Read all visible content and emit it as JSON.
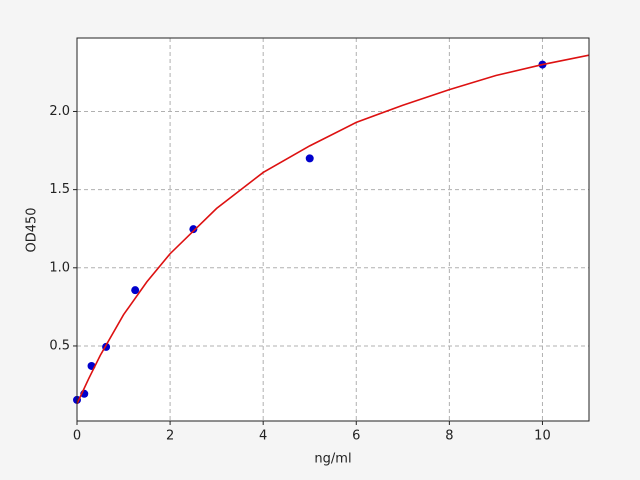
{
  "chart_data": {
    "type": "scatter",
    "xlabel": "ng/ml",
    "ylabel": "OD450",
    "series": [
      {
        "type": "scatter",
        "color": "#0000cc",
        "x": [
          0,
          0.156,
          0.312,
          0.625,
          1.25,
          2.5,
          5,
          10
        ],
        "values": [
          0.155,
          0.194,
          0.372,
          0.494,
          0.857,
          1.247,
          1.7,
          2.3
        ]
      },
      {
        "type": "line",
        "color": "#dd1111",
        "x": [
          0,
          0.25,
          0.5,
          1,
          1.5,
          2,
          3,
          4,
          5,
          6,
          7,
          8,
          9,
          10,
          11
        ],
        "values": [
          0.13,
          0.29,
          0.44,
          0.7,
          0.91,
          1.09,
          1.38,
          1.61,
          1.78,
          1.93,
          2.04,
          2.14,
          2.23,
          2.3,
          2.36
        ]
      }
    ],
    "xlim": [
      0,
      11
    ],
    "ylim": [
      0.02,
      2.47
    ],
    "xticks": [
      0,
      2,
      4,
      6,
      8,
      10
    ],
    "yticks": [
      0.5,
      {
        "value": 1.0,
        "label": "1.0"
      },
      1.5,
      {
        "value": 2.0,
        "label": "2.0"
      }
    ],
    "grid": true
  }
}
